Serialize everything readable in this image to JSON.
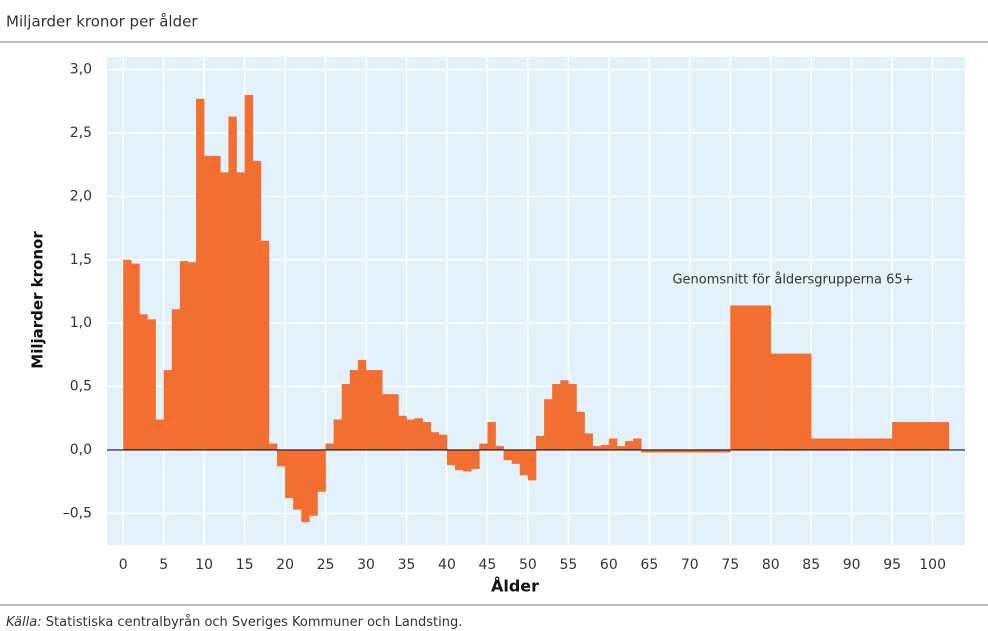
{
  "chart_data": {
    "type": "bar",
    "title": "Miljarder kronor per ålder",
    "ylabel": "Miljarder kronor",
    "xlabel": "Ålder",
    "annotation": "Genomsnitt för åldersgrupperna 65+",
    "source_label": "Källa:",
    "source": "Statistiska centralbyrån och Sveriges Kommuner och Landsting.",
    "color": "#f26f31",
    "grid": true,
    "x": [
      0,
      1,
      2,
      3,
      4,
      5,
      6,
      7,
      8,
      9,
      10,
      11,
      12,
      13,
      14,
      15,
      16,
      17,
      18,
      19,
      20,
      21,
      22,
      23,
      24,
      25,
      26,
      27,
      28,
      29,
      30,
      31,
      32,
      33,
      34,
      35,
      36,
      37,
      38,
      39,
      40,
      41,
      42,
      43,
      44,
      45,
      46,
      47,
      48,
      49,
      50,
      51,
      52,
      53,
      54,
      55,
      56,
      57,
      58,
      59,
      60,
      61,
      62,
      63,
      64,
      65,
      66,
      67,
      68,
      69,
      70,
      71,
      72,
      73,
      74,
      75,
      76,
      77,
      78,
      79,
      80,
      81,
      82,
      83,
      84,
      85,
      86,
      87,
      88,
      89,
      90,
      91,
      92,
      93,
      94,
      95,
      96,
      97,
      98,
      99,
      100,
      101
    ],
    "values": [
      1.5,
      1.47,
      1.07,
      1.03,
      0.24,
      0.63,
      1.11,
      1.49,
      1.48,
      2.77,
      2.32,
      2.32,
      2.19,
      2.63,
      2.19,
      2.8,
      2.28,
      1.65,
      0.05,
      -0.13,
      -0.38,
      -0.47,
      -0.57,
      -0.52,
      -0.33,
      0.05,
      0.24,
      0.52,
      0.63,
      0.71,
      0.63,
      0.63,
      0.44,
      0.44,
      0.27,
      0.24,
      0.25,
      0.22,
      0.14,
      0.12,
      -0.12,
      -0.16,
      -0.17,
      -0.15,
      0.05,
      0.22,
      0.03,
      -0.08,
      -0.11,
      -0.2,
      -0.24,
      0.11,
      0.4,
      0.52,
      0.55,
      0.52,
      0.3,
      0.13,
      0.03,
      0.04,
      0.09,
      0.03,
      0.07,
      0.09,
      -0.02,
      -0.02,
      -0.02,
      -0.02,
      -0.02,
      -0.02,
      -0.02,
      -0.02,
      -0.02,
      -0.02,
      -0.02,
      1.14,
      1.14,
      1.14,
      1.14,
      1.14,
      0.76,
      0.76,
      0.76,
      0.76,
      0.76,
      0.09,
      0.09,
      0.09,
      0.09,
      0.09,
      0.09,
      0.09,
      0.09,
      0.09,
      0.09,
      0.22,
      0.22,
      0.22,
      0.22,
      0.22,
      0.22,
      0.22
    ],
    "xlim": [
      -2,
      104
    ],
    "xticks": [
      0,
      5,
      10,
      15,
      20,
      25,
      30,
      35,
      40,
      45,
      50,
      55,
      60,
      65,
      70,
      75,
      80,
      85,
      90,
      95,
      100
    ],
    "ylim": [
      -0.75,
      3.1
    ],
    "yticks": [
      {
        "value": -0.5,
        "label": "–0,5"
      },
      {
        "value": 0,
        "label": "0,0"
      },
      {
        "value": 0.5,
        "label": "0,5"
      },
      {
        "value": 1,
        "label": "1,0"
      },
      {
        "value": 1.5,
        "label": "1,5"
      },
      {
        "value": 2,
        "label": "2,0"
      },
      {
        "value": 2.5,
        "label": "2,5"
      },
      {
        "value": 3,
        "label": "3,0"
      }
    ]
  }
}
